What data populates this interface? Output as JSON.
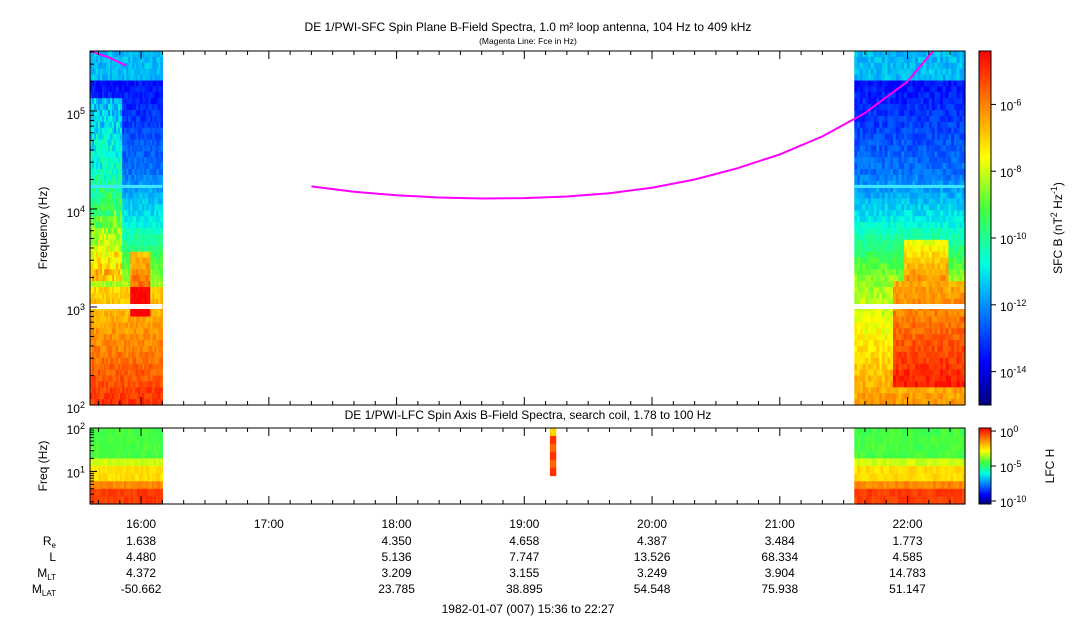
{
  "chart_data": [
    {
      "type": "heatmap",
      "title": "DE 1/PWI-SFC  Spin Plane B-Field Spectra, 1.0 m² loop antenna, 104 Hz to 409 kHz",
      "subtitle": "(Magenta Line: Fce in Hz)",
      "ylabel": "Frequency (Hz)",
      "y_scale": "log",
      "ylim": [
        100,
        409000
      ],
      "y_ticks": [
        {
          "b": "10",
          "e": "2"
        },
        {
          "b": "10",
          "e": "3"
        },
        {
          "b": "10",
          "e": "4"
        },
        {
          "b": "10",
          "e": "5"
        }
      ],
      "colorbar": {
        "label_parts": [
          {
            "t": "SFC B (nT"
          },
          {
            "t": "2",
            "sup": true
          },
          {
            "t": " Hz"
          },
          {
            "t": "-1",
            "sup": true
          },
          {
            "t": ")"
          }
        ],
        "scale": "log",
        "ticks": [
          {
            "b": "10",
            "e": "-6"
          },
          {
            "b": "10",
            "e": "-8"
          },
          {
            "b": "10",
            "e": "-10"
          },
          {
            "b": "10",
            "e": "-12"
          },
          {
            "b": "10",
            "e": "-14"
          }
        ]
      },
      "data_coverage": [
        [
          "15:36",
          "16:10"
        ],
        [
          "21:35",
          "22:27"
        ]
      ],
      "line_series": {
        "name": "Fce",
        "color": "#ff00ff",
        "segments": [
          {
            "time": [
              "15:36",
              "15:45",
              "15:53"
            ],
            "hz": [
              409000,
              350000,
              290000
            ]
          },
          {
            "time": [
              "17:20",
              "17:40",
              "18:00",
              "18:20",
              "18:40",
              "19:00",
              "19:20",
              "19:40",
              "20:00",
              "20:20",
              "20:40",
              "21:00",
              "21:20",
              "21:40",
              "22:00",
              "22:12"
            ],
            "hz": [
              17000,
              15000,
              13800,
              13100,
              12800,
              12900,
              13400,
              14500,
              16500,
              20000,
              26000,
              36000,
              55000,
              95000,
              200000,
              409000
            ]
          }
        ]
      }
    },
    {
      "type": "heatmap",
      "title": "DE 1/PWI-LFC  Spin Axis B-Field Spectra, search coil, 1.78 to 100 Hz",
      "ylabel": "Freq (Hz)",
      "y_scale": "log",
      "ylim": [
        1.78,
        100
      ],
      "y_ticks": [
        {
          "b": "10",
          "e": "2"
        },
        {
          "b": "10",
          "e": "1"
        }
      ],
      "colorbar": {
        "label": "LFC H",
        "scale": "log",
        "ticks": [
          {
            "b": "10",
            "e": "0"
          },
          {
            "b": "10",
            "e": "-5"
          },
          {
            "b": "10",
            "e": "-10"
          }
        ]
      },
      "data_coverage": [
        [
          "15:36",
          "16:10"
        ],
        [
          "19:12",
          "19:15"
        ],
        [
          "21:35",
          "22:27"
        ]
      ]
    }
  ],
  "x_axis": {
    "tick_labels": [
      "16:00",
      "17:00",
      "18:00",
      "19:00",
      "20:00",
      "21:00",
      "22:00"
    ],
    "time_range": [
      "15:36",
      "22:27"
    ]
  },
  "ephemeris": {
    "rows": [
      {
        "label": "R",
        "sub": "e",
        "values": [
          "1.638",
          "",
          "4.350",
          "4.658",
          "4.387",
          "3.484",
          "1.773"
        ]
      },
      {
        "label": "L",
        "sub": "",
        "values": [
          "4.480",
          "",
          "5.136",
          "7.747",
          "13.526",
          "68.334",
          "4.585"
        ]
      },
      {
        "label": "M",
        "sub": "LT",
        "values": [
          "4.372",
          "",
          "3.209",
          "3.155",
          "3.249",
          "3.904",
          "14.783"
        ]
      },
      {
        "label": "M",
        "sub": "LAT",
        "values": [
          "-50.662",
          "",
          "23.785",
          "38.895",
          "54.548",
          "75.938",
          "51.147"
        ]
      }
    ]
  },
  "footer": "1982-01-07 (007) 15:36 to 22:27",
  "colors": {
    "fce_line": "#ff00ff"
  }
}
